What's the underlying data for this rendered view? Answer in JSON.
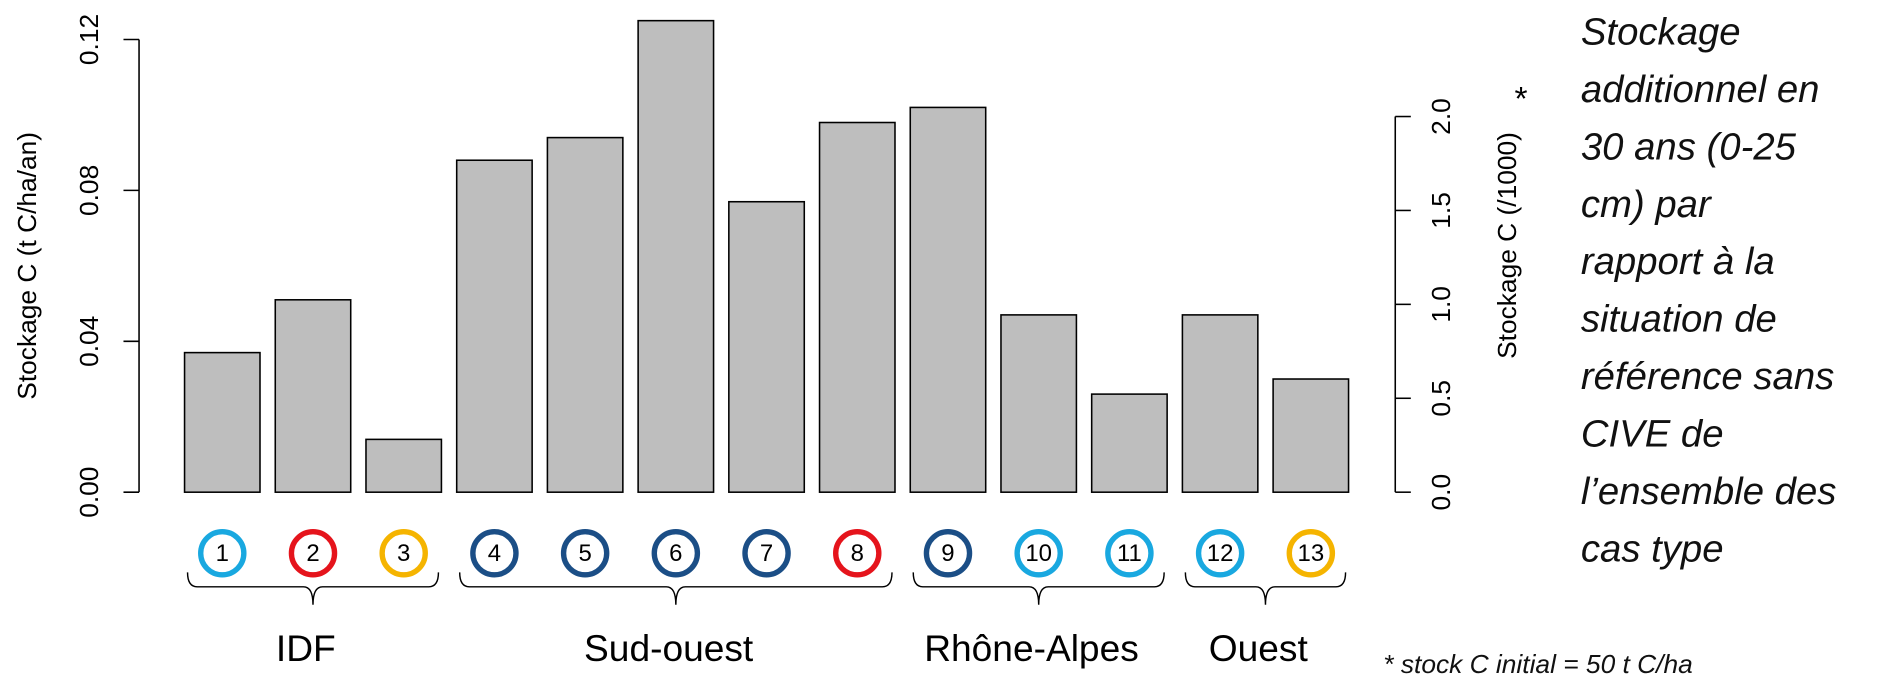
{
  "chart_data": {
    "type": "bar",
    "y_label": "Stockage C (t C/ha/an)",
    "y2_label": "Stockage C (/1000)",
    "y2_marker": "*",
    "categories": [
      "1",
      "2",
      "3",
      "4",
      "5",
      "6",
      "7",
      "8",
      "9",
      "10",
      "11",
      "12",
      "13"
    ],
    "category_colors": [
      "#19a8e0",
      "#e5141c",
      "#f5b400",
      "#1b4e86",
      "#1b4e86",
      "#1b4e86",
      "#1b4e86",
      "#e5141c",
      "#1b4e86",
      "#19a8e0",
      "#19a8e0",
      "#19a8e0",
      "#f5b400"
    ],
    "values": [
      0.037,
      0.051,
      0.014,
      0.088,
      0.094,
      0.125,
      0.077,
      0.098,
      0.102,
      0.047,
      0.026,
      0.047,
      0.03
    ],
    "color": "#bebebe",
    "groups": [
      {
        "name": "IDF",
        "from": "1",
        "to": "3"
      },
      {
        "name": "Sud-ouest",
        "from": "4",
        "to": "8"
      },
      {
        "name": "Rhône-Alpes",
        "from": "9",
        "to": "11"
      },
      {
        "name": "Ouest",
        "from": "12",
        "to": "13"
      }
    ],
    "ylim": [
      0,
      0.12
    ],
    "yticks": [
      {
        "value": 0,
        "label": "0.00"
      },
      {
        "value": 0.04,
        "label": "0.04"
      },
      {
        "value": 0.08,
        "label": "0.08"
      },
      {
        "value": 0.12,
        "label": "0.12"
      }
    ],
    "y2lim": [
      0,
      2.41
    ],
    "y2ticks": [
      {
        "value": 0,
        "label": "0.0"
      },
      {
        "value": 0.5,
        "label": "0.5"
      },
      {
        "value": 1,
        "label": "1.0"
      },
      {
        "value": 1.5,
        "label": "1.5"
      },
      {
        "value": 2,
        "label": "2.0"
      }
    ],
    "annotation_lines": [
      "Stockage",
      "additionnel en",
      "30 ans (0-25",
      "cm) par",
      "rapport à la",
      "situation de",
      "référence sans",
      "CIVE de",
      "l’ensemble des",
      "cas type"
    ],
    "footnote": "* stock C initial = 50 t C/ha"
  }
}
